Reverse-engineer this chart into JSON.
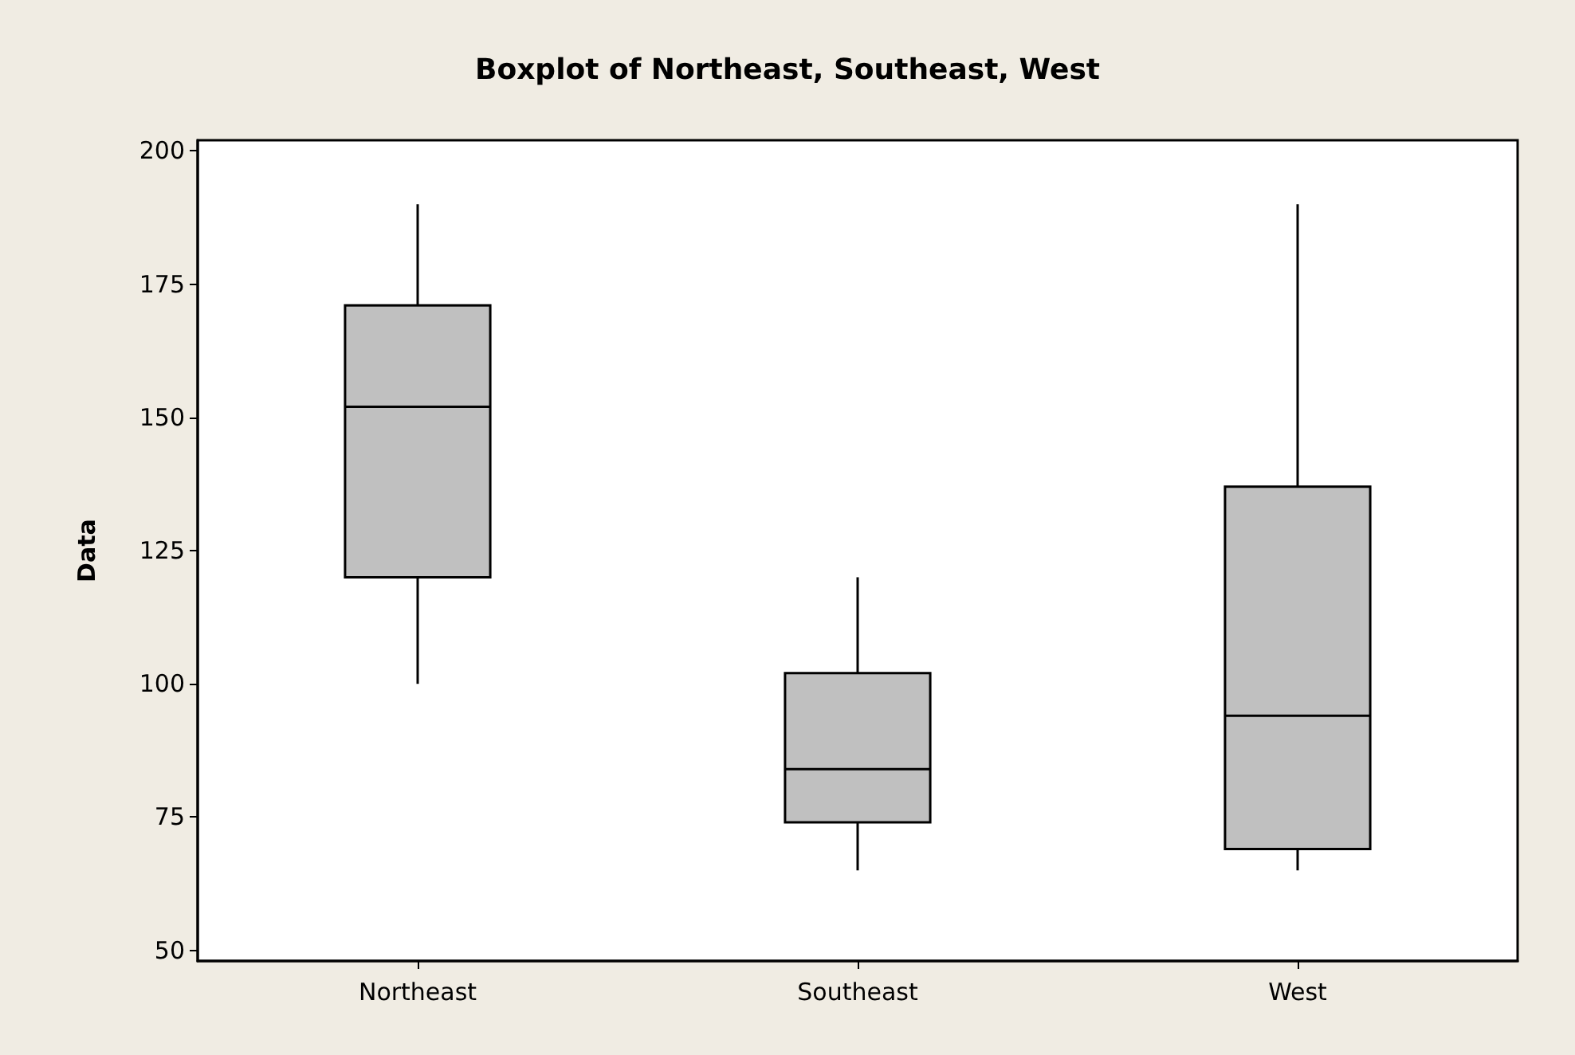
{
  "chart_data": {
    "type": "box",
    "title": "Boxplot of Northeast, Southeast, West",
    "ylabel": "Data",
    "categories": [
      "Northeast",
      "Southeast",
      "West"
    ],
    "boxes": [
      {
        "low": 100,
        "q1": 120,
        "median": 152,
        "q3": 171,
        "high": 190
      },
      {
        "low": 65,
        "q1": 74,
        "median": 84,
        "q3": 102,
        "high": 120
      },
      {
        "low": 65,
        "q1": 69,
        "median": 94,
        "q3": 137,
        "high": 190
      }
    ],
    "color": "#c0c0c0",
    "ylim": [
      48,
      202
    ],
    "yticks": [
      50,
      75,
      100,
      125,
      150,
      175,
      200
    ],
    "grid": false
  }
}
